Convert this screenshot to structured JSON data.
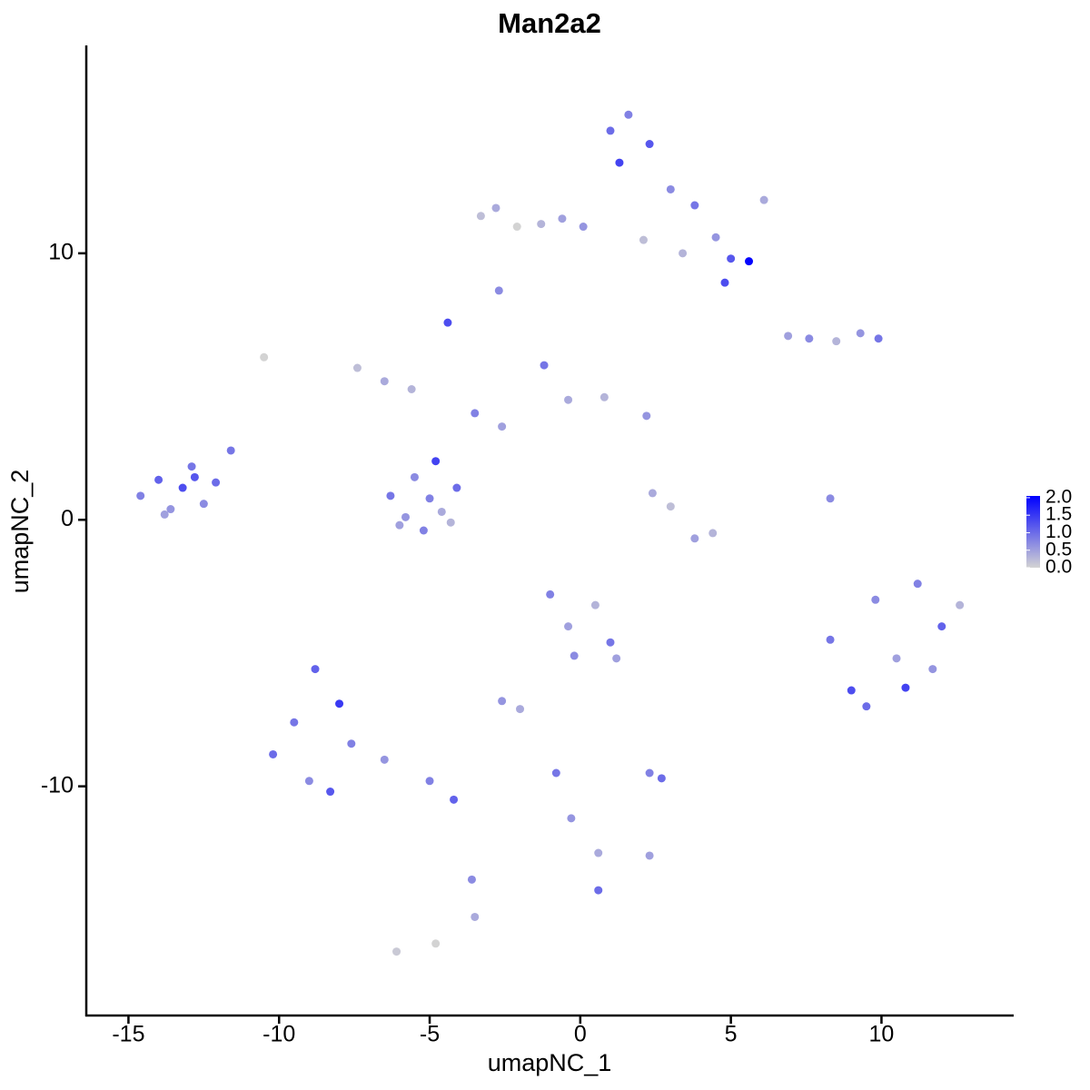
{
  "chart_data": {
    "type": "scatter",
    "title": "Man2a2",
    "x_label": "umapNC_1",
    "y_label": "umapNC_2",
    "xlim": [
      -16.4,
      14.45
    ],
    "ylim": [
      -18.6,
      17.8
    ],
    "xticks": [
      -15,
      -10,
      -5,
      0,
      5,
      10
    ],
    "yticks": [
      -10,
      0,
      10
    ],
    "grid": false,
    "colors": [
      "#d3d3d3",
      "#0000ff"
    ],
    "clim": [
      0,
      2.05
    ],
    "cticks": [
      {
        "value": 0,
        "label": "0.0"
      },
      {
        "value": 0.5,
        "label": "0.5"
      },
      {
        "value": 1,
        "label": "1.0"
      },
      {
        "value": 1.5,
        "label": "1.5"
      },
      {
        "value": 2,
        "label": "2.0"
      }
    ],
    "x": [
      -14.6,
      -14.0,
      -13.6,
      -13.2,
      -12.9,
      -12.5,
      -12.1,
      -13.8,
      -12.8,
      -11.6,
      -6.3,
      -5.8,
      -5.2,
      -4.6,
      -4.1,
      -5.5,
      -4.8,
      -6.0,
      -4.3,
      -5.0,
      -7.4,
      -6.5,
      -5.6,
      -4.4,
      -3.5,
      -2.6,
      -1.2,
      -0.4,
      0.8,
      2.2,
      1.0,
      1.6,
      2.3,
      1.3,
      3.0,
      3.8,
      4.5,
      5.0,
      5.6,
      4.8,
      -3.3,
      -2.8,
      -2.1,
      -1.3,
      -0.6,
      0.1,
      2.1,
      3.4,
      -2.7,
      6.1,
      8.3,
      9.0,
      9.8,
      10.5,
      11.2,
      12.0,
      12.6,
      9.5,
      10.8,
      11.7,
      -10.2,
      -9.5,
      -8.8,
      -8.0,
      -7.6,
      -9.0,
      -8.3,
      -6.5,
      -5.0,
      -4.2,
      -1.0,
      -0.4,
      0.5,
      -0.2,
      1.0,
      -2.6,
      -2.0,
      2.3,
      2.7,
      1.2,
      6.9,
      7.6,
      8.5,
      9.3,
      9.9,
      2.4,
      3.0,
      3.8,
      4.4,
      8.3,
      -0.8,
      -0.3,
      0.6,
      2.3,
      -3.6,
      -3.5,
      0.6,
      -6.1,
      -4.8,
      -10.5
    ],
    "y": [
      0.9,
      1.5,
      0.4,
      1.2,
      2.0,
      0.6,
      1.4,
      0.2,
      1.6,
      2.6,
      0.9,
      0.1,
      -0.4,
      0.3,
      1.2,
      1.6,
      2.2,
      -0.2,
      -0.1,
      0.8,
      5.7,
      5.2,
      4.9,
      7.4,
      4.0,
      3.5,
      5.8,
      4.5,
      4.6,
      3.9,
      14.6,
      15.2,
      14.1,
      13.4,
      12.4,
      11.8,
      10.6,
      9.8,
      9.7,
      8.9,
      11.4,
      11.7,
      11.0,
      11.1,
      11.3,
      11.0,
      10.5,
      10.0,
      8.6,
      12.0,
      -4.5,
      -6.4,
      -3.0,
      -5.2,
      -2.4,
      -4.0,
      -3.2,
      -7.0,
      -6.3,
      -5.6,
      -8.8,
      -7.6,
      -5.6,
      -6.9,
      -8.4,
      -9.8,
      -10.2,
      -9.0,
      -9.8,
      -10.5,
      -2.8,
      -4.0,
      -3.2,
      -5.1,
      -4.6,
      -6.8,
      -7.1,
      -9.5,
      -9.7,
      -5.2,
      6.9,
      6.8,
      6.7,
      7.0,
      6.8,
      1.0,
      0.5,
      -0.7,
      -0.5,
      0.8,
      -9.5,
      -11.2,
      -12.5,
      -12.6,
      -13.5,
      -14.9,
      -13.9,
      -16.2,
      -15.9,
      6.1
    ],
    "values": [
      0.8,
      1.1,
      0.6,
      1.3,
      0.9,
      0.7,
      1.0,
      0.5,
      1.2,
      0.9,
      0.9,
      0.6,
      0.8,
      0.4,
      1.0,
      0.7,
      1.4,
      0.5,
      0.3,
      0.8,
      0.2,
      0.4,
      0.3,
      1.3,
      0.8,
      0.5,
      0.9,
      0.4,
      0.3,
      0.6,
      1.0,
      0.8,
      1.2,
      1.4,
      0.7,
      0.9,
      0.6,
      1.2,
      2.0,
      1.3,
      0.2,
      0.4,
      0.0,
      0.3,
      0.5,
      0.6,
      0.2,
      0.3,
      0.7,
      0.4,
      0.9,
      1.3,
      0.7,
      0.5,
      0.8,
      1.1,
      0.3,
      1.0,
      1.4,
      0.6,
      1.0,
      0.9,
      1.1,
      1.5,
      0.8,
      0.7,
      1.2,
      0.6,
      0.8,
      1.1,
      0.8,
      0.5,
      0.3,
      0.7,
      0.9,
      0.6,
      0.4,
      0.8,
      1.0,
      0.5,
      0.5,
      0.7,
      0.3,
      0.6,
      0.9,
      0.4,
      0.2,
      0.5,
      0.3,
      0.7,
      0.9,
      0.6,
      0.4,
      0.5,
      0.7,
      0.4,
      1.0,
      0.1,
      0.0,
      0.0
    ]
  }
}
